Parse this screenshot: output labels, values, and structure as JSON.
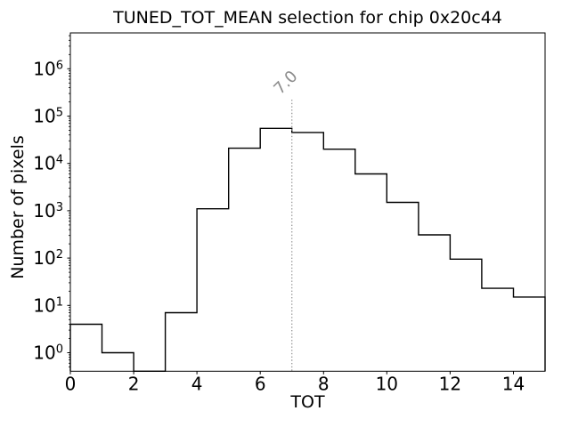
{
  "chart_data": {
    "type": "bar",
    "subtype": "step-histogram",
    "title": "TUNED_TOT_MEAN selection for chip 0x20c44",
    "xlabel": "TOT",
    "ylabel": "Number of pixels",
    "yscale": "log",
    "grid": false,
    "legend_position": "none",
    "xlim": [
      0,
      15
    ],
    "ylim": [
      0.4,
      6000000
    ],
    "bin_edges": [
      0,
      1,
      2,
      3,
      4,
      5,
      6,
      7,
      8,
      9,
      10,
      11,
      12,
      13,
      14,
      15
    ],
    "counts": [
      4,
      1,
      0,
      7,
      1100,
      21000,
      55000,
      45000,
      20000,
      6000,
      1500,
      310,
      95,
      23,
      15
    ],
    "xticks": [
      0,
      2,
      4,
      6,
      8,
      10,
      12,
      14
    ],
    "xtick_labels": [
      "0",
      "2",
      "4",
      "6",
      "8",
      "10",
      "12",
      "14"
    ],
    "ytick_base": "10",
    "ytick_exponents": [
      "0",
      "1",
      "2",
      "3",
      "4",
      "5",
      "6"
    ],
    "vline": {
      "x": 7.0,
      "label": "7.0",
      "style": "dotted"
    },
    "colors": {
      "line": "#000000",
      "frame": "#000000",
      "vline": "#999999",
      "annotation": "#8c8c8c",
      "background": "#ffffff"
    }
  }
}
